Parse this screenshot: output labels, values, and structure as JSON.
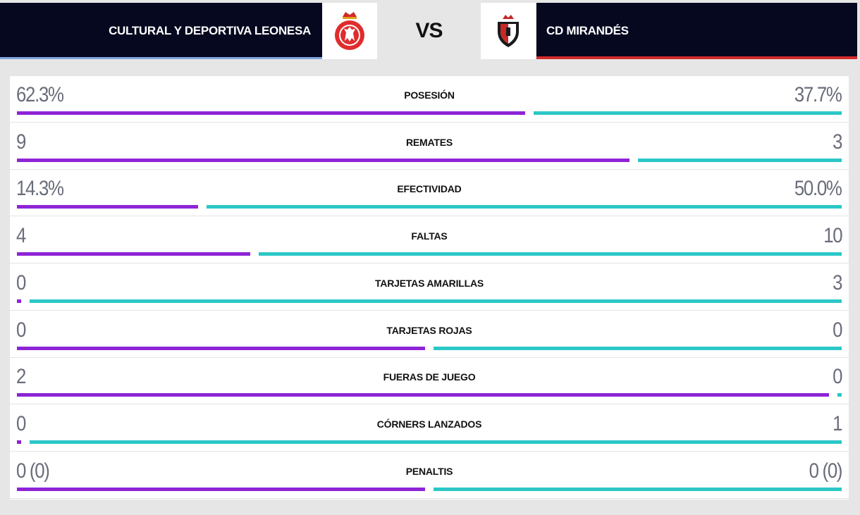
{
  "match": {
    "home_team": "CULTURAL Y DEPORTIVA LEONESA",
    "away_team": "CD MIRANDÉS",
    "vs_label": "VS"
  },
  "colors": {
    "home_bar": "#8e24d6",
    "away_bar": "#2cc7c7",
    "header_bg": "#05081f",
    "home_accent": "#7fa6e0",
    "away_accent": "#d42a2a"
  },
  "icons": {
    "home_crest": "cultural-leonesa-crest-icon",
    "away_crest": "mirandes-crest-icon"
  },
  "stats": [
    {
      "label": "POSESIÓN",
      "home": "62.3%",
      "away": "37.7%",
      "home_share": 0.623
    },
    {
      "label": "REMATES",
      "home": "9",
      "away": "3",
      "home_share": 0.75
    },
    {
      "label": "EFECTIVIDAD",
      "home": "14.3%",
      "away": "50.0%",
      "home_share": 0.222
    },
    {
      "label": "FALTAS",
      "home": "4",
      "away": "10",
      "home_share": 0.286
    },
    {
      "label": "TARJETAS AMARILLAS",
      "home": "0",
      "away": "3",
      "home_share": 0
    },
    {
      "label": "TARJETAS ROJAS",
      "home": "0",
      "away": "0",
      "home_share": 0.5
    },
    {
      "label": "FUERAS DE JUEGO",
      "home": "2",
      "away": "0",
      "home_share": 1
    },
    {
      "label": "CÓRNERS LANZADOS",
      "home": "0",
      "away": "1",
      "home_share": 0
    },
    {
      "label": "PENALTIS",
      "home": "0 (0)",
      "away": "0 (0)",
      "home_share": 0.5
    }
  ]
}
